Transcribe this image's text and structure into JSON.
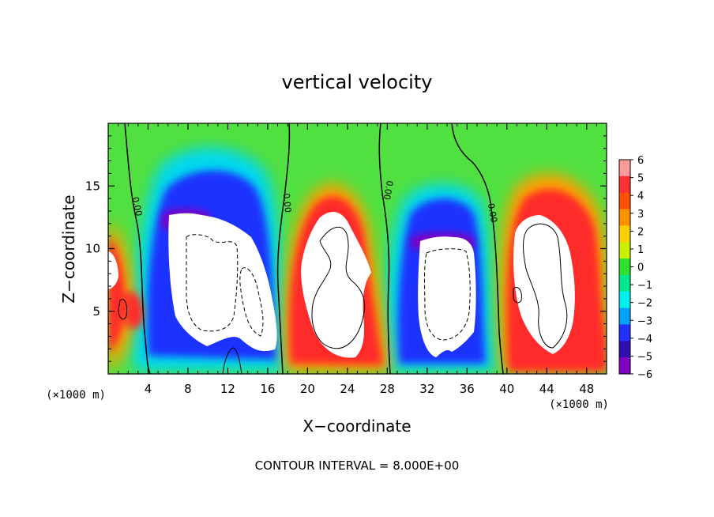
{
  "chart_data": {
    "type": "heatmap",
    "title": "vertical velocity",
    "xlabel": "X−coordinate",
    "ylabel": "Z−coordinate",
    "x_unit_left": "(×1000 m)",
    "x_unit_right": "(×1000 m)",
    "xlim": [
      0,
      50
    ],
    "ylim": [
      0,
      20
    ],
    "x_ticks": [
      4,
      8,
      12,
      16,
      20,
      24,
      28,
      32,
      36,
      40,
      44,
      48
    ],
    "x_tick_labels": [
      "4",
      "8",
      "12",
      "16",
      "20",
      "24",
      "28",
      "32",
      "36",
      "40",
      "44",
      "48"
    ],
    "y_ticks": [
      5,
      10,
      15
    ],
    "y_tick_labels": [
      "5",
      "10",
      "15"
    ],
    "colorbar": {
      "range": [
        -6,
        6
      ],
      "ticks": [
        6,
        5,
        4,
        3,
        2,
        1,
        0,
        -1,
        -2,
        -3,
        -4,
        -5,
        -6
      ],
      "tick_labels": [
        "6",
        "5",
        "4",
        "3",
        "2",
        "1",
        "0",
        "−1",
        "−2",
        "−3",
        "−4",
        "−5",
        "−6"
      ],
      "colors_top_to_bottom": [
        "#ff9a9a",
        "#ff3030",
        "#ff5000",
        "#ff9000",
        "#ffd000",
        "#c8f000",
        "#30e030",
        "#00e890",
        "#00f0f0",
        "#00a0ff",
        "#2030ff",
        "#3010b0",
        "#8000c0"
      ]
    },
    "contour_labels": [
      "0.00",
      "0.00",
      "0.00",
      "0.00"
    ],
    "contour_interval_text": "CONTOUR INTERVAL = 8.000E+00",
    "features": [
      {
        "name": "updraft-core",
        "x": 10.5,
        "z": 8.5,
        "sign": "up",
        "saturated": true
      },
      {
        "name": "updraft-core",
        "x": 22.5,
        "z": 7.0,
        "sign": "up",
        "saturated": true
      },
      {
        "name": "updraft-core",
        "x": 33.5,
        "z": 7.0,
        "sign": "up",
        "saturated": true
      },
      {
        "name": "updraft-core",
        "x": 44.0,
        "z": 6.5,
        "sign": "up",
        "saturated": true
      }
    ]
  }
}
